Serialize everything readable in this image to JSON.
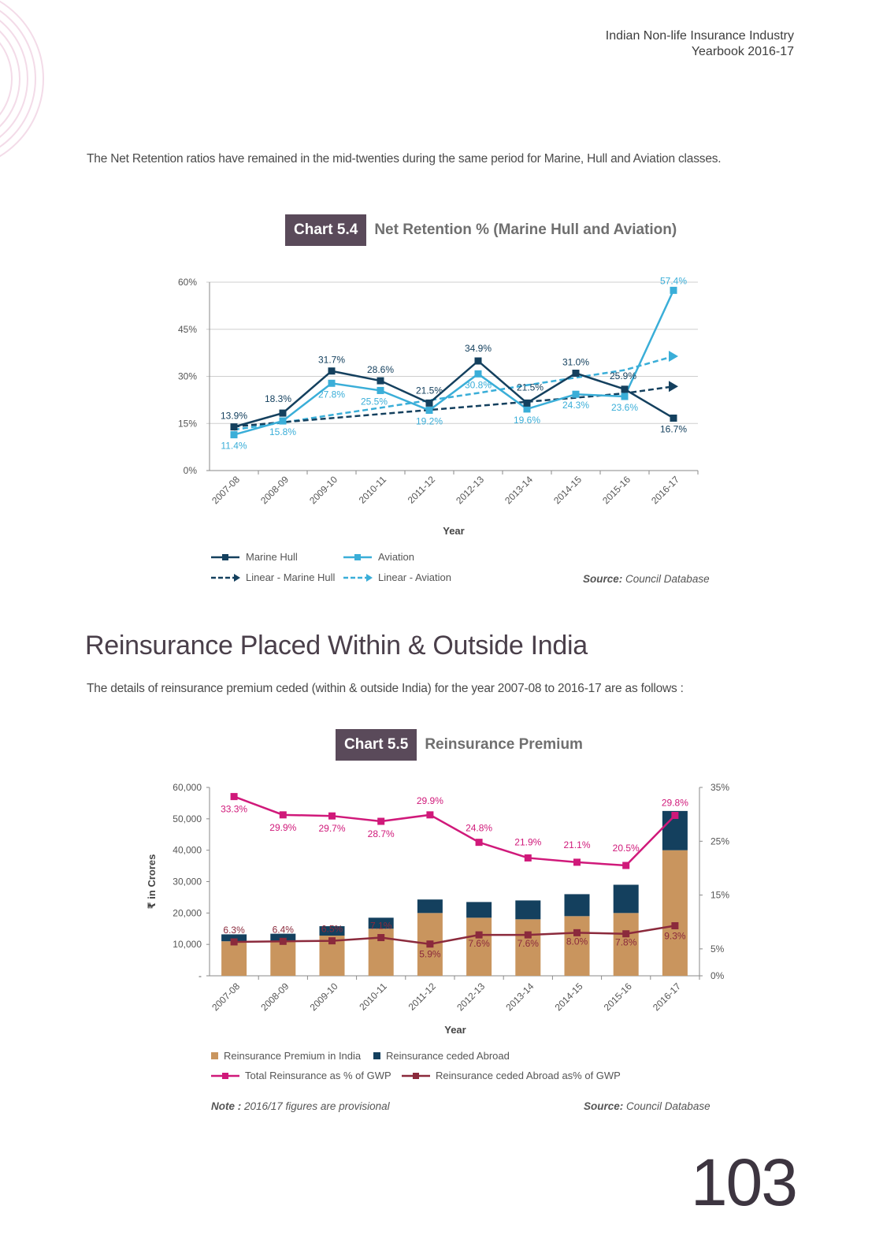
{
  "header": {
    "line1": "Indian Non-life Insurance Industry",
    "line2": "Yearbook 2016-17"
  },
  "intro1": "The Net Retention ratios have remained in the mid-twenties during the same period for Marine, Hull and Aviation classes.",
  "chart1_title": {
    "tag": "Chart 5.4",
    "name": "Net Retention % (Marine Hull and Aviation)"
  },
  "section_heading": "Reinsurance Placed Within & Outside India",
  "intro2": "The details of reinsurance premium ceded (within & outside India) for the year 2007-08 to 2016-17 are as follows :",
  "chart2_title": {
    "tag": "Chart 5.5",
    "name": "Reinsurance Premium"
  },
  "source1": {
    "label": "Source:",
    "text": " Council Database"
  },
  "source2": {
    "label": "Source:",
    "text": " Council Database"
  },
  "note": {
    "label": "Note :",
    "text": " 2016/17 figures are provisional"
  },
  "page_number": "103",
  "colors": {
    "marine": "#14405e",
    "aviation": "#3aaed8",
    "india_bar": "#c9955e",
    "abroad_bar": "#14405e",
    "total_line": "#d0197a",
    "abroad_line": "#8b2a3c"
  },
  "chart_data": [
    {
      "type": "line",
      "title": "Net Retention % (Marine Hull and Aviation)",
      "xlabel": "Year",
      "ylabel": "",
      "ylim": [
        0,
        60
      ],
      "yticks": [
        "0%",
        "15%",
        "30%",
        "45%",
        "60%"
      ],
      "categories": [
        "2007-08",
        "2008-09",
        "2009-10",
        "2010-11",
        "2011-12",
        "2012-13",
        "2013-14",
        "2014-15",
        "2015-16",
        "2016-17"
      ],
      "series": [
        {
          "name": "Marine Hull",
          "values": [
            13.9,
            18.3,
            31.7,
            28.6,
            21.5,
            34.9,
            21.5,
            31.0,
            25.9,
            16.7
          ],
          "labels": [
            "13.9%",
            "18.3%",
            "31.7%",
            "28.6%",
            "21.5%",
            "34.9%",
            "21.5%",
            "31.0%",
            "25.9%",
            "16.7%"
          ]
        },
        {
          "name": "Aviation",
          "values": [
            11.4,
            15.8,
            27.8,
            25.5,
            19.2,
            30.8,
            19.6,
            24.3,
            23.6,
            57.4
          ],
          "labels": [
            "11.4%",
            "15.8%",
            "27.8%",
            "25.5%",
            "19.2%",
            "30.8%",
            "19.6%",
            "24.3%",
            "23.6%",
            "57.4%"
          ]
        },
        {
          "name": "Linear - Marine Hull",
          "values": [
            14.0,
            15.4,
            16.7,
            18.0,
            19.3,
            20.6,
            21.9,
            23.2,
            24.6,
            26.8
          ]
        },
        {
          "name": "Linear - Aviation",
          "values": [
            13.0,
            15.3,
            17.7,
            20.0,
            22.4,
            24.7,
            27.2,
            29.6,
            32.0,
            36.4
          ]
        }
      ],
      "legend_position": "bottom-left"
    },
    {
      "type": "bar",
      "title": "Reinsurance Premium",
      "xlabel": "Year",
      "ylabel": "₹ in Crores",
      "ylim": [
        0,
        60000
      ],
      "yticks": [
        "-",
        "10,000",
        "20,000",
        "30,000",
        "40,000",
        "50,000",
        "60,000"
      ],
      "y2lim": [
        0,
        35
      ],
      "y2ticks": [
        "0%",
        "5%",
        "15%",
        "25%",
        "35%"
      ],
      "categories": [
        "2007-08",
        "2008-09",
        "2009-10",
        "2010-11",
        "2011-12",
        "2012-13",
        "2013-14",
        "2014-15",
        "2015-16",
        "2016-17"
      ],
      "series": [
        {
          "name": "Reinsurance Premium in India",
          "values": [
            11000,
            11000,
            12800,
            15000,
            20000,
            18500,
            18000,
            19000,
            20000,
            40000
          ]
        },
        {
          "name": "Reinsurance ceded Abroad",
          "values": [
            2200,
            2400,
            3000,
            3500,
            4300,
            5000,
            6000,
            7000,
            9000,
            12500
          ]
        },
        {
          "name": "Total Reinsurance as % of GWP",
          "axis": "right",
          "values": [
            33.3,
            29.9,
            29.7,
            28.7,
            29.9,
            24.8,
            21.9,
            21.1,
            20.5,
            29.8
          ],
          "labels": [
            "33.3%",
            "29.9%",
            "29.7%",
            "28.7%",
            "29.9%",
            "24.8%",
            "21.9%",
            "21.1%",
            "20.5%",
            "29.8%"
          ]
        },
        {
          "name": "Reinsurance ceded Abroad as% of GWP",
          "axis": "right",
          "values": [
            6.3,
            6.4,
            6.5,
            7.1,
            5.9,
            7.6,
            7.6,
            8.0,
            7.8,
            9.3
          ],
          "labels": [
            "6.3%",
            "6.4%",
            "6.5%",
            "7.1%",
            "5.9%",
            "7.6%",
            "7.6%",
            "8.0%",
            "7.8%",
            "9.3%"
          ]
        }
      ],
      "legend_position": "bottom-left"
    }
  ]
}
